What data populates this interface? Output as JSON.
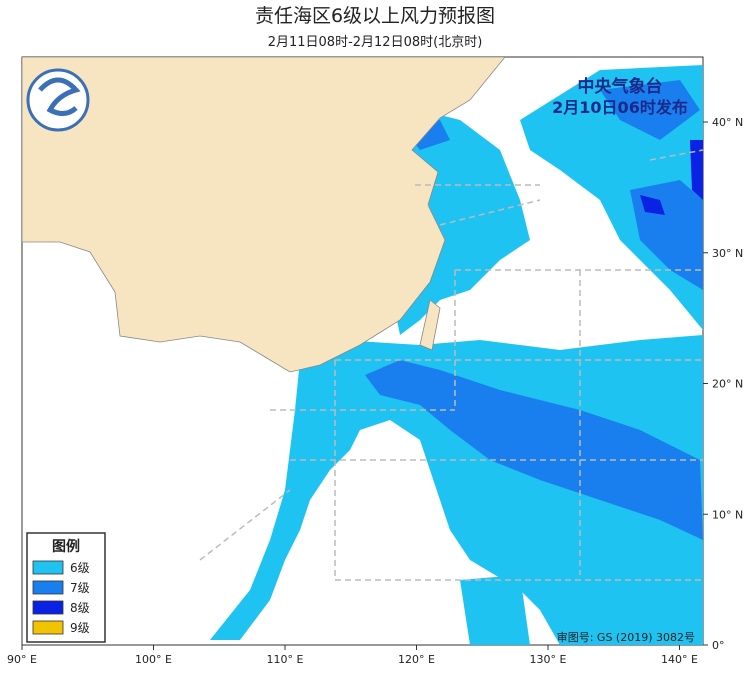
{
  "map": {
    "title": "责任海区6级以上风力预报图",
    "subtitle": "2月11日08时-2月12日08时(北京时)",
    "issuer": "中央气象台",
    "issue_time": "2月10日06时发布",
    "approval": "审图号: GS (2019) 3082号",
    "lon_labels": [
      "90° E",
      "100° E",
      "110° E",
      "120° E",
      "130° E",
      "140° E"
    ],
    "lat_labels": [
      "40° N",
      "30° N",
      "20° N",
      "10° N",
      "0°"
    ],
    "legend": {
      "title": "图例",
      "items": [
        {
          "label": "6级",
          "color": "#1ec3f2"
        },
        {
          "label": "7级",
          "color": "#1a7fee"
        },
        {
          "label": "8级",
          "color": "#0a22e4"
        },
        {
          "label": "9级",
          "color": "#f2c400"
        }
      ]
    }
  }
}
